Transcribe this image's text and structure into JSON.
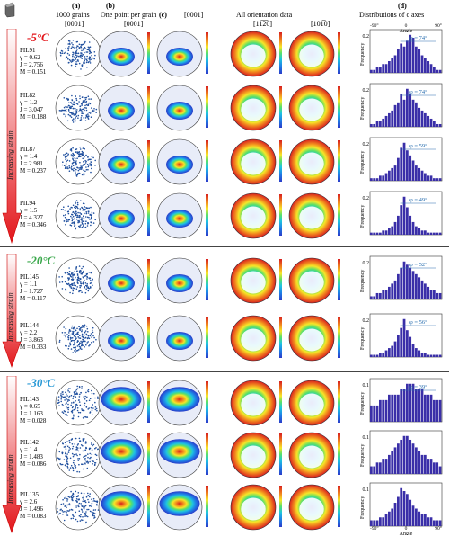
{
  "panel_letters": [
    "(a)",
    "(b)",
    "(c)",
    "(d)"
  ],
  "headers": {
    "col_a": "1000 grains",
    "col_a_sub": "[0001]",
    "col_b": "One point per grain",
    "col_b_sub": "[0001]",
    "col_c_sub": "[0001]",
    "col_d_group": "All orientation data",
    "col_d_sub": "[11̅2̅0]",
    "col_e_sub": "[101̅0]",
    "col_f": "Distributions of c axes"
  },
  "increasing_strain": "Increasing strain",
  "frequency_label": "Frequency",
  "angle_label": "Angle",
  "hist_x_ticks": [
    "-90°",
    "0",
    "90°"
  ],
  "groups": [
    {
      "temperature": "-5°C",
      "temp_color": "#e3161b",
      "samples": [
        {
          "name": "PIL91",
          "gamma": "γ = 0.62",
          "J": "J = 2.756",
          "M": "M = 0.151",
          "phi": "φ = 74°",
          "ymax": "0.2",
          "hist": [
            1,
            1,
            2,
            2,
            3,
            3,
            4,
            5,
            6,
            8,
            10,
            9,
            11,
            13,
            12,
            9,
            8,
            6,
            5,
            4,
            3,
            2,
            1,
            1
          ]
        },
        {
          "name": "PIL82",
          "gamma": "γ = 1.2",
          "J": "J = 3.047",
          "M": "M = 0.188",
          "phi": "φ = 74°",
          "ymax": "0.2",
          "hist": [
            1,
            1,
            2,
            2,
            3,
            4,
            5,
            6,
            8,
            9,
            12,
            10,
            14,
            12,
            10,
            9,
            7,
            6,
            5,
            4,
            3,
            2,
            1,
            1
          ]
        },
        {
          "name": "PIL87",
          "gamma": "γ = 1.4",
          "J": "J = 2.981",
          "M": "M = 0.237",
          "phi": "φ = 59°",
          "ymax": "0.2",
          "hist": [
            1,
            1,
            1,
            2,
            2,
            3,
            4,
            5,
            6,
            9,
            13,
            15,
            12,
            10,
            8,
            6,
            5,
            4,
            3,
            2,
            2,
            1,
            1,
            1
          ]
        },
        {
          "name": "PIL94",
          "gamma": "γ = 1.5",
          "J": "J = 4.327",
          "M": "M = 0.346",
          "phi": "φ = 49°",
          "ymax": "0.2",
          "hist": [
            1,
            1,
            1,
            1,
            2,
            2,
            3,
            4,
            6,
            9,
            14,
            18,
            13,
            9,
            6,
            4,
            3,
            2,
            2,
            1,
            1,
            1,
            1,
            1
          ]
        }
      ]
    },
    {
      "temperature": "-20°C",
      "temp_color": "#3aa84b",
      "samples": [
        {
          "name": "PIL145",
          "gamma": "γ = 1.1",
          "J": "J = 1.727",
          "M": "M = 0.117",
          "phi": "φ = 52°",
          "ymax": "0.2",
          "hist": [
            1,
            1,
            2,
            2,
            3,
            3,
            4,
            5,
            6,
            8,
            10,
            12,
            11,
            10,
            9,
            8,
            7,
            6,
            5,
            4,
            3,
            3,
            2,
            2
          ]
        },
        {
          "name": "PIL144",
          "gamma": "γ = 2.2",
          "J": "J = 3.863",
          "M": "M = 0.333",
          "phi": "φ = 56°",
          "ymax": "0.2",
          "hist": [
            1,
            1,
            1,
            2,
            2,
            3,
            4,
            5,
            7,
            10,
            13,
            17,
            12,
            9,
            6,
            4,
            3,
            2,
            2,
            1,
            1,
            1,
            1,
            1
          ]
        }
      ]
    },
    {
      "temperature": "-30°C",
      "temp_color": "#2b9ad6",
      "samples": [
        {
          "name": "PIL143",
          "gamma": "γ = 0.65",
          "J": "J = 1.163",
          "M": "M = 0.028",
          "phi": "φ = 39°",
          "ymax": "0.1",
          "hist": [
            3,
            3,
            3,
            4,
            4,
            4,
            5,
            5,
            5,
            5,
            6,
            6,
            7,
            7,
            7,
            6,
            6,
            6,
            5,
            5,
            5,
            4,
            4,
            4
          ]
        },
        {
          "name": "PIL142",
          "gamma": "γ = 1.4",
          "J": "J = 1.483",
          "M": "M = 0.086",
          "phi": "",
          "ymax": "0.1",
          "hist": [
            2,
            2,
            3,
            3,
            4,
            4,
            5,
            6,
            7,
            8,
            9,
            10,
            10,
            9,
            8,
            7,
            6,
            5,
            5,
            4,
            4,
            3,
            3,
            2
          ]
        },
        {
          "name": "PIL135",
          "gamma": "γ = 2.6",
          "J": "J = 1.496",
          "M": "M = 0.083",
          "phi": "",
          "ymax": "0.1",
          "hist": [
            2,
            2,
            2,
            3,
            3,
            4,
            5,
            6,
            8,
            10,
            13,
            12,
            11,
            9,
            7,
            6,
            5,
            4,
            4,
            3,
            3,
            2,
            2,
            2
          ]
        }
      ]
    }
  ]
}
